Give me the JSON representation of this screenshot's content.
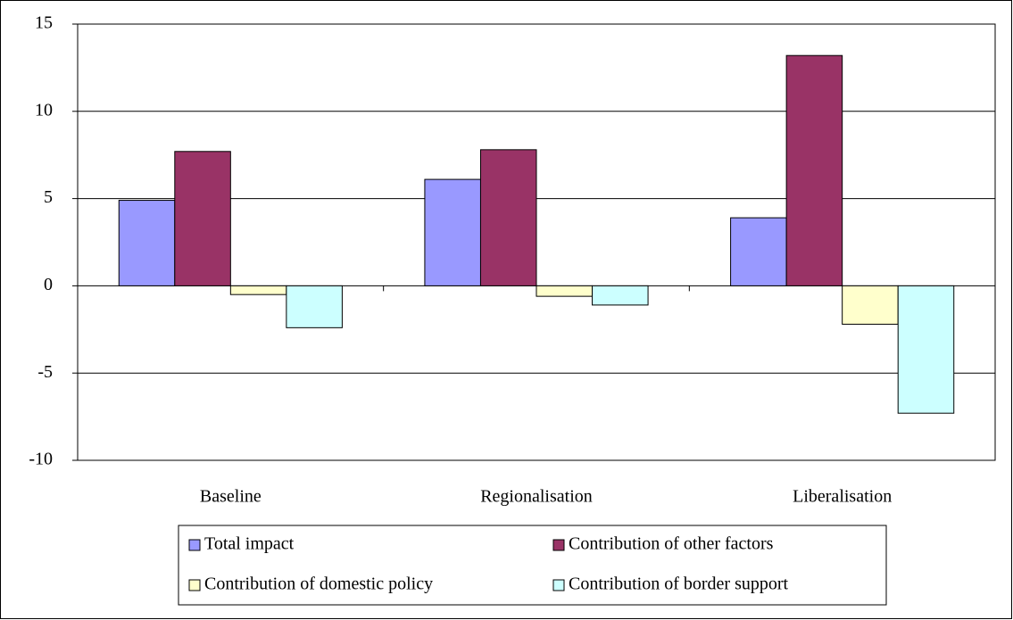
{
  "chart_data": {
    "type": "bar",
    "categories": [
      "Baseline",
      "Regionalisation",
      "Liberalisation"
    ],
    "series": [
      {
        "name": "Total impact",
        "color": "#9999ff",
        "values": [
          4.9,
          6.1,
          3.9
        ]
      },
      {
        "name": "Contribution of other factors",
        "color": "#993366",
        "values": [
          7.7,
          7.8,
          13.2
        ]
      },
      {
        "name": "Contribution of domestic policy",
        "color": "#ffffcc",
        "values": [
          -0.5,
          -0.6,
          -2.2
        ]
      },
      {
        "name": "Contribution of border support",
        "color": "#ccffff",
        "values": [
          -2.4,
          -1.1,
          -7.3
        ]
      }
    ],
    "ylim": [
      -10,
      15
    ],
    "yticks": [
      -10,
      -5,
      0,
      5,
      10,
      15
    ],
    "grid": true,
    "legend": "bottom"
  }
}
